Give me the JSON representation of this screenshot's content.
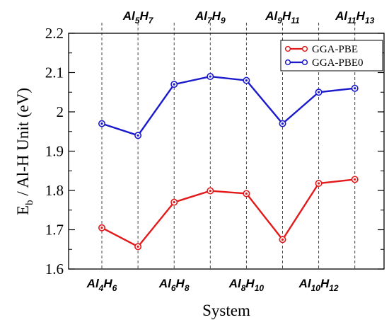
{
  "chart_data": {
    "type": "line",
    "xlabel": "System",
    "ylabel_main": "E",
    "ylabel_sub": "b",
    "ylabel_rest": " / Al-H Unit (eV)",
    "ylim": [
      1.6,
      2.2
    ],
    "yticks": [
      "1.6",
      "1.7",
      "1.8",
      "1.9",
      "2",
      "2.1",
      "2.2"
    ],
    "ytick_values": [
      1.6,
      1.7,
      1.8,
      1.9,
      2.0,
      2.1,
      2.2
    ],
    "grid": "vertical dashed lines at each system",
    "legend_position": "top-right",
    "categories": [
      {
        "al": "4",
        "h": "6",
        "label_row": "bottom"
      },
      {
        "al": "5",
        "h": "7",
        "label_row": "top"
      },
      {
        "al": "6",
        "h": "8",
        "label_row": "bottom"
      },
      {
        "al": "7",
        "h": "9",
        "label_row": "top"
      },
      {
        "al": "8",
        "h": "10",
        "label_row": "bottom"
      },
      {
        "al": "9",
        "h": "11",
        "label_row": "top"
      },
      {
        "al": "10",
        "h": "12",
        "label_row": "bottom"
      },
      {
        "al": "11",
        "h": "13",
        "label_row": "top"
      }
    ],
    "category_prefix_al": "Al",
    "category_prefix_h": "H",
    "series": [
      {
        "name": "GGA-PBE",
        "color": "#e31a1c",
        "values": [
          1.705,
          1.657,
          1.77,
          1.799,
          1.792,
          1.675,
          1.818,
          1.828
        ]
      },
      {
        "name": "GGA-PBE0",
        "color": "#1a1acc",
        "values": [
          1.97,
          1.94,
          2.07,
          2.09,
          2.08,
          1.97,
          2.05,
          2.06
        ]
      }
    ]
  }
}
